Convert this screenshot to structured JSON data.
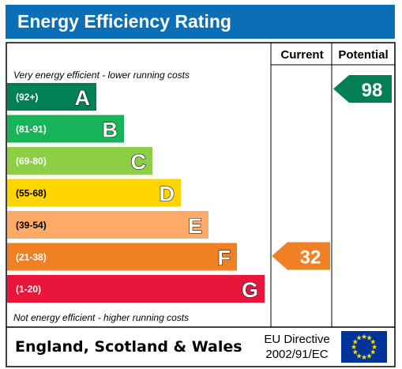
{
  "title": "Energy Efficiency Rating",
  "columns": {
    "current": "Current",
    "potential": "Potential"
  },
  "top_caption": "Very energy efficient - lower running costs",
  "bottom_caption": "Not energy efficient - higher running costs",
  "footer": {
    "region": "England, Scotland & Wales",
    "directive_line1": "EU Directive",
    "directive_line2": "2002/91/EC"
  },
  "colors": {
    "title_bg": "#0b6fb8",
    "A": "#008054",
    "B": "#19b459",
    "C": "#8dce46",
    "D": "#ffd500",
    "E": "#fcaa65",
    "F": "#ef8023",
    "G": "#e9153b",
    "eu_flag": "#003399",
    "eu_star": "#ffdd00"
  },
  "chart_data": {
    "type": "bar",
    "categories": [
      "A",
      "B",
      "C",
      "D",
      "E",
      "F",
      "G"
    ],
    "ranges": [
      "(92+)",
      "(81-91)",
      "(69-80)",
      "(55-68)",
      "(39-54)",
      "(21-38)",
      "(1-20)"
    ],
    "current": {
      "value": 32,
      "band": "F"
    },
    "potential": {
      "value": 98,
      "band": "A"
    }
  }
}
